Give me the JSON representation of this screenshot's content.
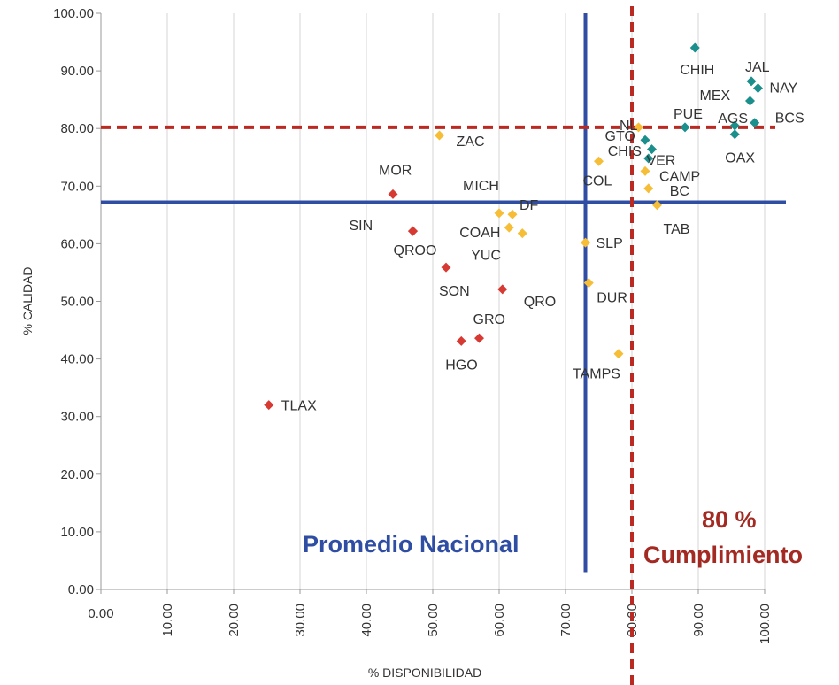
{
  "chart_data": {
    "type": "scatter",
    "title": "",
    "xlabel": "% DISPONIBILIDAD",
    "ylabel": "% CALIDAD",
    "xlim": [
      0,
      100
    ],
    "ylim": [
      0,
      100
    ],
    "x_ticks": [
      "0.00",
      "10.00",
      "20.00",
      "30.00",
      "40.00",
      "50.00",
      "60.00",
      "70.00",
      "80.00",
      "90.00",
      "100.00"
    ],
    "y_ticks": [
      "0.00",
      "10.00",
      "20.00",
      "30.00",
      "40.00",
      "50.00",
      "60.00",
      "70.00",
      "80.00",
      "90.00",
      "100.00"
    ],
    "grid": "vertical",
    "colors": {
      "red": "#d63a32",
      "yellow": "#f6bd36",
      "teal": "#1b8f8c",
      "blue_line": "#2f4ea3",
      "red_line": "#bb2a22"
    },
    "reference_lines": [
      {
        "axis": "x",
        "value": 73,
        "style": "solid",
        "color": "blue_line",
        "from": 3,
        "to": 100
      },
      {
        "axis": "y",
        "value": 67.2,
        "style": "solid",
        "color": "blue_line"
      },
      {
        "axis": "x",
        "value": 80,
        "style": "dashed",
        "color": "red_line"
      },
      {
        "axis": "y",
        "value": 80.2,
        "style": "dashed",
        "color": "red_line"
      }
    ],
    "annotations": [
      {
        "text": "Promedio Nacional",
        "color": "blue_line"
      },
      {
        "text": "80 %",
        "color": "red_line"
      },
      {
        "text": "Cumplimiento",
        "color": "red_line"
      }
    ],
    "points": [
      {
        "label": "TLAX",
        "x": 25.3,
        "y": 32.0,
        "color": "red"
      },
      {
        "label": "MOR",
        "x": 44.0,
        "y": 68.6,
        "color": "red"
      },
      {
        "label": "SIN",
        "x": 47.0,
        "y": 62.2,
        "color": "red"
      },
      {
        "label": "QROO",
        "x": 47.0,
        "y": 62.2,
        "color": "red"
      },
      {
        "label": "SON",
        "x": 52.0,
        "y": 55.9,
        "color": "red"
      },
      {
        "label": "QRO",
        "x": 60.5,
        "y": 52.1,
        "color": "red"
      },
      {
        "label": "GRO",
        "x": 57.0,
        "y": 43.6,
        "color": "red"
      },
      {
        "label": "HGO",
        "x": 54.3,
        "y": 43.1,
        "color": "red"
      },
      {
        "label": "ZAC",
        "x": 51.0,
        "y": 78.8,
        "color": "yellow"
      },
      {
        "label": "MICH",
        "x": 60.0,
        "y": 65.3,
        "color": "yellow"
      },
      {
        "label": "DF",
        "x": 62.0,
        "y": 65.1,
        "color": "yellow"
      },
      {
        "label": "COAH",
        "x": 61.5,
        "y": 62.8,
        "color": "yellow"
      },
      {
        "label": "YUC",
        "x": 63.5,
        "y": 61.8,
        "color": "yellow"
      },
      {
        "label": "SLP",
        "x": 73.0,
        "y": 60.2,
        "color": "yellow"
      },
      {
        "label": "DUR",
        "x": 73.5,
        "y": 53.2,
        "color": "yellow"
      },
      {
        "label": "TAMPS",
        "x": 78.0,
        "y": 40.9,
        "color": "yellow"
      },
      {
        "label": "COL",
        "x": 75.0,
        "y": 74.3,
        "color": "yellow"
      },
      {
        "label": "CAMP",
        "x": 82.0,
        "y": 72.6,
        "color": "yellow"
      },
      {
        "label": "BC",
        "x": 82.5,
        "y": 69.6,
        "color": "yellow"
      },
      {
        "label": "TAB",
        "x": 83.8,
        "y": 66.7,
        "color": "yellow"
      },
      {
        "label": "GTO",
        "x": 81.0,
        "y": 80.2,
        "color": "yellow"
      },
      {
        "label": "CHIS",
        "x": 82.5,
        "y": 74.8,
        "color": "teal"
      },
      {
        "label": "NL",
        "x": 82.0,
        "y": 78.0,
        "color": "teal"
      },
      {
        "label": "VER",
        "x": 83.0,
        "y": 76.4,
        "color": "teal"
      },
      {
        "label": "PUE",
        "x": 88.0,
        "y": 80.2,
        "color": "teal"
      },
      {
        "label": "CHIH",
        "x": 89.5,
        "y": 94.0,
        "color": "teal"
      },
      {
        "label": "JAL",
        "x": 98.0,
        "y": 88.2,
        "color": "teal"
      },
      {
        "label": "NAY",
        "x": 99.0,
        "y": 87.0,
        "color": "teal"
      },
      {
        "label": "MEX",
        "x": 97.8,
        "y": 84.8,
        "color": "teal"
      },
      {
        "label": "AGS",
        "x": 95.5,
        "y": 80.5,
        "color": "teal"
      },
      {
        "label": "BCS",
        "x": 98.5,
        "y": 81.0,
        "color": "teal"
      },
      {
        "label": "OAX",
        "x": 95.5,
        "y": 79.0,
        "color": "teal"
      }
    ]
  }
}
